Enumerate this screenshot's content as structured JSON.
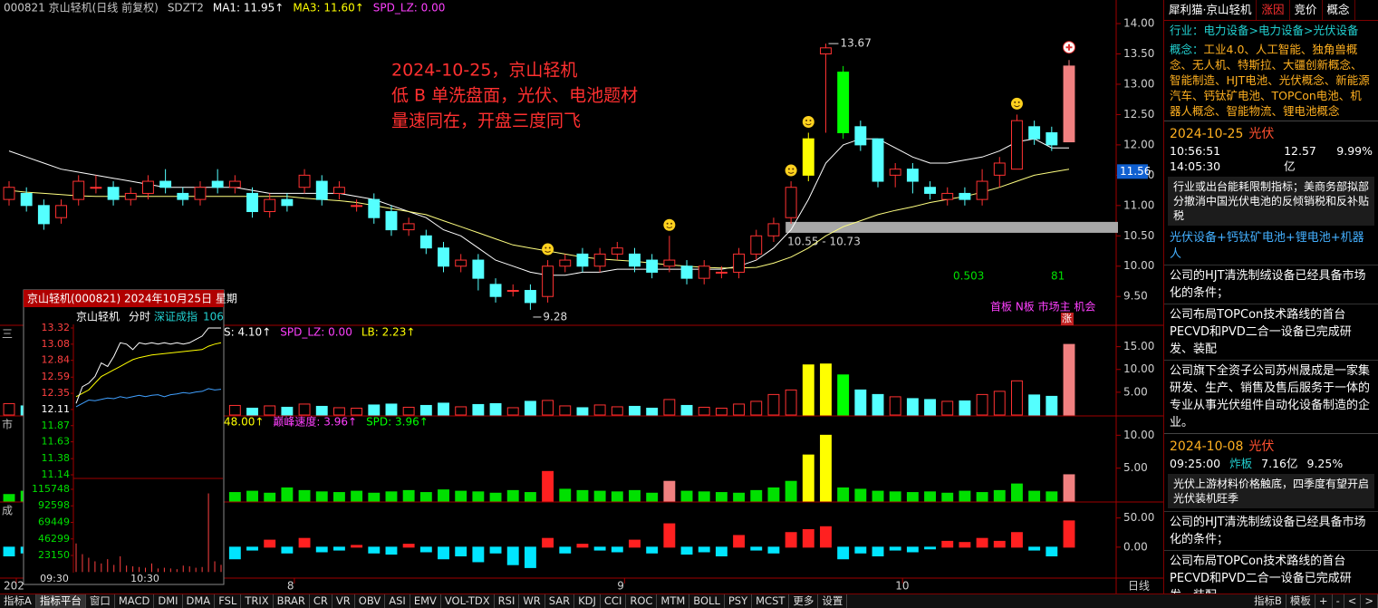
{
  "chart_data": [
    {
      "type": "candlestick",
      "legend": [
        {
          "text": "000821 京山轻机(日线 前复权)",
          "color": "#c8c8c8"
        },
        {
          "text": "SDZT2",
          "color": "#c8c8c8"
        },
        {
          "text": "MA1: 11.95↑",
          "color": "#ffffff"
        },
        {
          "text": "MA3: 11.60↑",
          "color": "#ffff00"
        },
        {
          "text": "SPD_LZ: 0.00",
          "color": "#ff40ff"
        }
      ],
      "up_color": "#ff3232",
      "down_color": "#54ffff",
      "highlights": [
        {
          "index": 46,
          "color": "#ffff00"
        },
        {
          "index": 48,
          "color": "#00ff00"
        },
        {
          "index": 61,
          "color": "#f08080"
        }
      ],
      "candles": [
        [
          11.1,
          11.3,
          11.4,
          11.0
        ],
        [
          11.2,
          11.0,
          11.3,
          10.9
        ],
        [
          11.0,
          10.7,
          11.1,
          10.6
        ],
        [
          10.8,
          11.0,
          11.1,
          10.7
        ],
        [
          11.1,
          11.4,
          11.5,
          11.0
        ],
        [
          11.3,
          11.3,
          11.5,
          11.2
        ],
        [
          11.3,
          11.1,
          11.4,
          11.0
        ],
        [
          11.1,
          11.2,
          11.3,
          11.0
        ],
        [
          11.2,
          11.4,
          11.5,
          11.1
        ],
        [
          11.4,
          11.3,
          11.6,
          11.2
        ],
        [
          11.2,
          11.1,
          11.3,
          11.0
        ],
        [
          11.1,
          11.3,
          11.4,
          11.0
        ],
        [
          11.4,
          11.3,
          11.6,
          11.2
        ],
        [
          11.3,
          11.4,
          11.5,
          11.2
        ],
        [
          11.2,
          10.9,
          11.3,
          10.8
        ],
        [
          10.9,
          11.1,
          11.2,
          10.8
        ],
        [
          11.1,
          11.0,
          11.2,
          10.9
        ],
        [
          11.3,
          11.5,
          11.6,
          11.2
        ],
        [
          11.4,
          11.1,
          11.5,
          11.0
        ],
        [
          11.2,
          11.3,
          11.4,
          11.1
        ],
        [
          11.0,
          11.0,
          11.1,
          10.9
        ],
        [
          11.1,
          10.8,
          11.2,
          10.7
        ],
        [
          10.9,
          10.6,
          11.0,
          10.5
        ],
        [
          10.6,
          10.7,
          10.8,
          10.5
        ],
        [
          10.5,
          10.3,
          10.6,
          10.2
        ],
        [
          10.3,
          10.0,
          10.4,
          9.9
        ],
        [
          10.0,
          10.1,
          10.2,
          9.9
        ],
        [
          10.1,
          9.8,
          10.2,
          9.6
        ],
        [
          9.7,
          9.5,
          9.8,
          9.4
        ],
        [
          9.6,
          9.6,
          9.7,
          9.5
        ],
        [
          9.6,
          9.4,
          9.7,
          9.28
        ],
        [
          9.5,
          10.0,
          10.1,
          9.4
        ],
        [
          10.0,
          10.1,
          10.2,
          9.9
        ],
        [
          10.2,
          10.0,
          10.3,
          9.9
        ],
        [
          10.0,
          10.2,
          10.3,
          9.9
        ],
        [
          10.2,
          10.3,
          10.4,
          10.1
        ],
        [
          10.2,
          10.0,
          10.3,
          9.9
        ],
        [
          10.1,
          9.9,
          10.2,
          9.8
        ],
        [
          10.0,
          10.1,
          10.5,
          9.9
        ],
        [
          10.0,
          9.8,
          10.1,
          9.7
        ],
        [
          9.8,
          10.0,
          10.1,
          9.7
        ],
        [
          9.9,
          9.9,
          10.0,
          9.8
        ],
        [
          9.9,
          10.2,
          10.3,
          9.8
        ],
        [
          10.2,
          10.5,
          10.6,
          10.1
        ],
        [
          10.5,
          10.7,
          10.8,
          10.4
        ],
        [
          10.8,
          11.3,
          11.4,
          10.7
        ],
        [
          11.5,
          12.1,
          12.2,
          11.4
        ],
        [
          13.5,
          13.6,
          13.67,
          12.2
        ],
        [
          13.2,
          12.2,
          13.3,
          12.1
        ],
        [
          12.3,
          12.0,
          12.4,
          11.9
        ],
        [
          12.1,
          11.4,
          12.1,
          11.3
        ],
        [
          11.5,
          11.6,
          11.7,
          11.3
        ],
        [
          11.6,
          11.4,
          11.7,
          11.2
        ],
        [
          11.3,
          11.2,
          11.4,
          11.1
        ],
        [
          11.1,
          11.2,
          11.3,
          11.0
        ],
        [
          11.2,
          11.1,
          11.3,
          11.0
        ],
        [
          11.1,
          11.4,
          11.6,
          11.0
        ],
        [
          11.5,
          11.7,
          11.8,
          11.3
        ],
        [
          11.6,
          12.4,
          12.5,
          11.6
        ],
        [
          12.3,
          12.1,
          12.4,
          12.0
        ],
        [
          12.2,
          12.0,
          12.3,
          11.9
        ],
        [
          12.05,
          13.3,
          13.4,
          12.05
        ]
      ],
      "lines": [
        {
          "color": "#ffffff",
          "values": [
            11.9,
            11.8,
            11.7,
            11.6,
            11.55,
            11.5,
            11.45,
            11.4,
            11.35,
            11.3,
            11.3,
            11.3,
            11.3,
            11.3,
            11.25,
            11.2,
            11.2,
            11.2,
            11.2,
            11.2,
            11.15,
            11.1,
            11.0,
            10.9,
            10.8,
            10.6,
            10.5,
            10.3,
            10.1,
            10.0,
            9.9,
            9.85,
            9.85,
            9.9,
            9.9,
            9.95,
            9.95,
            9.95,
            9.95,
            9.95,
            9.95,
            9.95,
            10.0,
            10.1,
            10.3,
            10.6,
            11.1,
            11.7,
            12.0,
            12.1,
            12.1,
            11.95,
            11.8,
            11.7,
            11.7,
            11.75,
            11.8,
            11.9,
            12.05,
            12.1,
            11.95,
            11.95
          ]
        },
        {
          "color": "#ffff80",
          "values": [
            11.25,
            11.22,
            11.2,
            11.18,
            11.16,
            11.15,
            11.15,
            11.15,
            11.15,
            11.15,
            11.15,
            11.15,
            11.15,
            11.15,
            11.15,
            11.15,
            11.15,
            11.12,
            11.1,
            11.08,
            11.05,
            11.0,
            10.95,
            10.9,
            10.85,
            10.75,
            10.65,
            10.55,
            10.45,
            10.35,
            10.3,
            10.25,
            10.2,
            10.15,
            10.12,
            10.1,
            10.08,
            10.05,
            10.02,
            10.0,
            9.98,
            9.97,
            9.97,
            9.98,
            10.05,
            10.15,
            10.3,
            10.5,
            10.65,
            10.75,
            10.85,
            10.92,
            10.98,
            11.05,
            11.1,
            11.15,
            11.22,
            11.3,
            11.4,
            11.5,
            11.55,
            11.6
          ]
        }
      ],
      "ylim": [
        9.04,
        14.12
      ],
      "yticks": [
        {
          "value": 9.5,
          "label": "9.50"
        },
        {
          "value": 10,
          "label": "10.00"
        },
        {
          "value": 10.5,
          "label": "10.50"
        },
        {
          "value": 11,
          "label": "11.00"
        },
        {
          "value": 11.5,
          "label": "11.50"
        },
        {
          "value": 12,
          "label": "12.00"
        },
        {
          "value": 12.5,
          "label": "12.50"
        },
        {
          "value": 13,
          "label": "13.00"
        },
        {
          "value": 13.5,
          "label": "13.50"
        },
        {
          "value": 14,
          "label": "14.00"
        }
      ],
      "last_price": 11.56,
      "band": [
        10.55,
        10.73
      ],
      "band_label": "10.55 - 10.73",
      "band_start": 45,
      "annotations": [
        "2024-10-25，京山轻机",
        "低 B 单洗盘面，光伏、电池题材",
        "量速同在，开盘三度同飞"
      ],
      "annotation_color": "#ff3030",
      "stats": [
        0.503,
        81
      ],
      "signal": "首板 N板 市场主 机会",
      "badge": "涨",
      "x_labels": [
        "202",
        "8",
        "9",
        "10"
      ],
      "period": "日线"
    },
    {
      "type": "bar",
      "legend": [
        {
          "text": "S: 4.10↑",
          "color": "#ffffff"
        },
        {
          "text": "SPD_LZ: 0.00",
          "color": "#ff40ff"
        },
        {
          "text": "LB: 2.23↑",
          "color": "#ffff00"
        }
      ],
      "color_mode": "candles",
      "highlights": [
        {
          "index": 46,
          "color": "#ffff00"
        },
        {
          "index": 47,
          "color": "#ffff00"
        },
        {
          "index": 48,
          "color": "#00ff00"
        },
        {
          "index": 61,
          "color": "#f08080"
        }
      ],
      "values": [
        2.5,
        2,
        3,
        1.8,
        2.2,
        2,
        1.5,
        2,
        2.3,
        1.7,
        1.6,
        2,
        1.8,
        2.1,
        1.5,
        2,
        1.7,
        2.4,
        1.9,
        1.6,
        1.5,
        2.2,
        2.4,
        1.7,
        2.1,
        2.6,
        1.8,
        2.3,
        2.5,
        1.6,
        3,
        3.2,
        2,
        1.6,
        2.2,
        1.8,
        1.9,
        1.5,
        3.4,
        2.1,
        1.7,
        1.5,
        2.4,
        3,
        4.5,
        5.5,
        11,
        11.2,
        8.8,
        5.5,
        4.5,
        4,
        3.6,
        3.4,
        3,
        3.1,
        4.5,
        5.2,
        7.5,
        4.4,
        4.1,
        15.5
      ],
      "ylim": [
        0,
        19.5
      ],
      "yticks": [
        {
          "value": 5,
          "label": "5.00"
        },
        {
          "value": 10,
          "label": "10.00"
        },
        {
          "value": 15,
          "label": "15.00"
        }
      ]
    },
    {
      "type": "bar",
      "legend": [
        {
          "text": "48.00↑",
          "color": "#ffff00"
        },
        {
          "text": "巅峰速度: 3.96↑",
          "color": "#ff40ff"
        },
        {
          "text": "SPD: 3.96↑",
          "color": "#00ff00"
        }
      ],
      "color_mode": "fixed",
      "color": "#00e000",
      "highlights": [
        {
          "index": 31,
          "color": "#ff2020"
        },
        {
          "index": 38,
          "color": "#f08080"
        },
        {
          "index": 46,
          "color": "#ffff00"
        },
        {
          "index": 47,
          "color": "#ffff00"
        },
        {
          "index": 61,
          "color": "#f08080"
        }
      ],
      "values": [
        1,
        1.5,
        1.2,
        1.8,
        2,
        1.5,
        1.2,
        1.6,
        1.4,
        1.8,
        1.2,
        1.5,
        1.7,
        1.3,
        1.5,
        1.2,
        2,
        1.6,
        1.4,
        1.3,
        1.5,
        1.2,
        1.4,
        1.6,
        1.3,
        1.7,
        1.5,
        1.4,
        1.2,
        1.6,
        1.3,
        4.5,
        1.8,
        1.6,
        1.5,
        1.4,
        1.6,
        1.2,
        3,
        1.5,
        1.4,
        1.3,
        1.2,
        1.6,
        2,
        3,
        7,
        10,
        2,
        1.8,
        1.5,
        1.4,
        1.3,
        1.4,
        1.2,
        1.5,
        1.3,
        1.6,
        2.6,
        1.5,
        1.4,
        4
      ],
      "ylim": [
        0,
        12.8
      ],
      "yticks": [
        {
          "value": 5,
          "label": "5.00"
        },
        {
          "value": 10,
          "label": "10.00"
        }
      ]
    },
    {
      "type": "bar",
      "legend": [],
      "color_mode": "sign",
      "pos_color": "#ff2020",
      "neg_color": "#00e5ff",
      "values": [
        -15,
        -10,
        -20,
        5,
        10,
        -15,
        -5,
        8,
        -10,
        -12,
        5,
        -8,
        10,
        -20,
        -5,
        12,
        -10,
        15,
        -8,
        -5,
        3,
        -10,
        -12,
        5,
        -8,
        -20,
        -15,
        -25,
        -10,
        -30,
        -35,
        15,
        -10,
        5,
        -5,
        -8,
        12,
        -10,
        40,
        -12,
        -8,
        -15,
        20,
        -5,
        -10,
        25,
        30,
        35,
        -20,
        -10,
        -15,
        -5,
        -8,
        -3,
        10,
        8,
        15,
        10,
        25,
        -5,
        -15,
        45
      ],
      "ylim": [
        -53,
        75.8
      ],
      "yticks": [
        {
          "value": 0,
          "label": "0.00"
        },
        {
          "value": 50,
          "label": "50.00"
        }
      ]
    },
    {
      "type": "intraday",
      "title": "京山轻机(000821) 2024年10月25日 星期",
      "name": "京山轻机",
      "mode": "分时",
      "index_name": "深证成指",
      "index_value": "106",
      "price": [
        12.2,
        12.45,
        12.5,
        12.6,
        12.8,
        12.75,
        12.9,
        13.1,
        13.08,
        13.0,
        13.1,
        13.08,
        13.1,
        13.08,
        13.1,
        13.08,
        13.1,
        13.08,
        13.1,
        13.15,
        13.2,
        13.32,
        13.32,
        13.32
      ],
      "avg": [
        12.3,
        12.35,
        12.4,
        12.5,
        12.6,
        12.65,
        12.7,
        12.75,
        12.8,
        12.85,
        12.88,
        12.9,
        12.92,
        12.93,
        12.94,
        12.95,
        12.96,
        12.97,
        12.98,
        12.99,
        13.0,
        13.05,
        13.08,
        13.1
      ],
      "index": [
        12.15,
        12.2,
        12.25,
        12.24,
        12.26,
        12.28,
        12.27,
        12.3,
        12.28,
        12.3,
        12.32,
        12.3,
        12.32,
        12.33,
        12.3,
        12.33,
        12.34,
        12.36,
        12.35,
        12.37,
        12.38,
        12.42,
        12.4,
        12.41
      ],
      "volume": [
        40000,
        25000,
        20000,
        15000,
        12000,
        18000,
        10000,
        22000,
        9000,
        8000,
        7000,
        6000,
        12000,
        5000,
        6000,
        5000,
        4000,
        9000,
        8000,
        6000,
        7000,
        110000,
        15000,
        10000
      ],
      "price_color": "#ffffff",
      "avg_color": "#ffff00",
      "index_color": "#40a0ff",
      "vol_color": "#ff4040",
      "ylim": [
        11.14,
        13.32
      ],
      "yticks": [
        13.32,
        13.08,
        12.84,
        12.59,
        12.35,
        12.11,
        11.87,
        11.63,
        11.38,
        11.14
      ],
      "ref": 12.11,
      "vol_ylim": [
        0,
        128400
      ],
      "vol_ticks": [
        115748,
        92598,
        69449,
        46299,
        23150
      ],
      "times": [
        "09:30",
        "10:30"
      ]
    }
  ],
  "panel_tags": [
    "三",
    "市",
    "成"
  ],
  "sidebar": {
    "tabs": [
      "犀利猫·京山轻机",
      "涨因",
      "竞价",
      "概念"
    ],
    "industry_label": "行业：",
    "industry": "电力设备>电力设备>光伏设备",
    "concept_label": "概念：",
    "concepts": "工业4.0、人工智能、独角兽概念、无人机、特斯拉、大疆创新概念、智能制造、HJT电池、光伏概念、新能源汽车、钙钛矿电池、TOPCon电池、机器人概念、智能物流、锂电池概念",
    "events": [
      {
        "date": "2024-10-25",
        "tag": "光伏",
        "time": "10:56:51 14:05:30",
        "amount": "12.57亿",
        "pct": "9.99%",
        "note": "行业或出台能耗限制指标；美商务部拟部分撤消中国光伏电池的反倾销税和反补贴税",
        "theme": "光伏设备+钙钛矿电池+锂电池+机器人",
        "reasons": [
          "公司的HJT清洗制绒设备已经具备市场化的条件；",
          "公司布局TOPCon技术路线的首台PECVD和PVD二合一设备已完成研发、装配",
          "公司旗下全资子公司苏州晟成是一家集研发、生产、销售及售后服务于一体的专业从事光伏组件自动化设备制造的企业。"
        ]
      },
      {
        "date": "2024-10-08",
        "tag": "光伏",
        "time": "09:25:00",
        "status": "炸板",
        "amount": "7.16亿",
        "pct": "9.25%",
        "note": "光伏上游材料价格触底，四季度有望开启光伏装机旺季",
        "reasons": [
          "公司的HJT清洗制绒设备已经具备市场化的条件；",
          "公司布局TOPCon技术路线的首台PECVD和PVD二合一设备已完成研发、装配"
        ]
      }
    ]
  },
  "toolbar": {
    "left": [
      "指标A",
      "指标平台",
      "窗口",
      "MACD",
      "DMI",
      "DMA",
      "FSL",
      "TRIX",
      "BRAR",
      "CR",
      "VR",
      "OBV",
      "ASI",
      "EMV",
      "VOL-TDX",
      "RSI",
      "WR",
      "SAR",
      "KDJ",
      "CCI",
      "ROC",
      "MTM",
      "BOLL",
      "PSY",
      "MCST",
      "更多",
      "设置"
    ],
    "right": [
      "指标B",
      "模板",
      "+",
      "-",
      "<",
      ">"
    ]
  }
}
